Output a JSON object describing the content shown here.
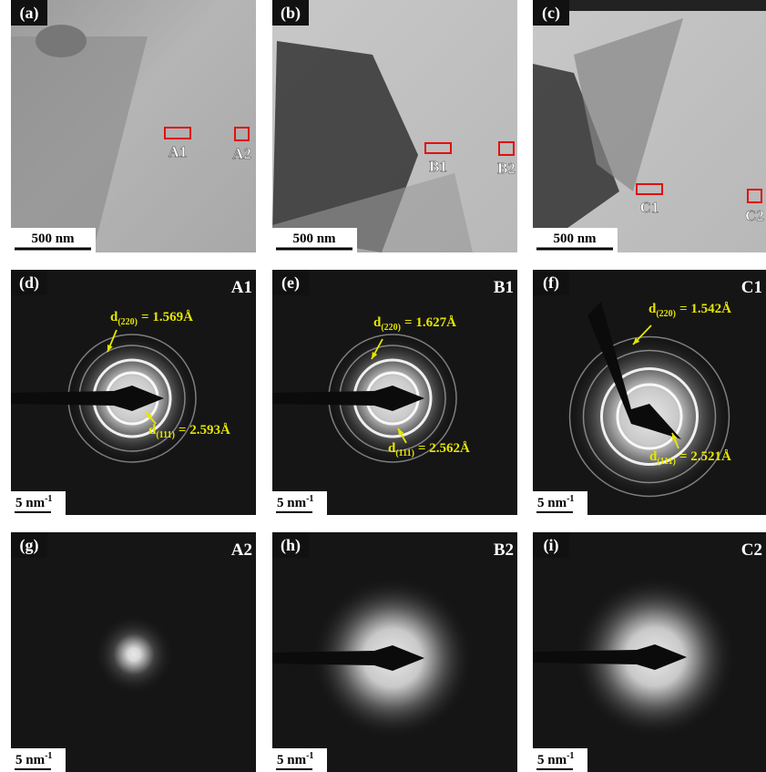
{
  "tem_images": [
    {
      "label": "(a)",
      "markers": [
        "A1",
        "A2"
      ],
      "scale_bar": "500 nm"
    },
    {
      "label": "(b)",
      "markers": [
        "B1",
        "B2"
      ],
      "scale_bar": "500 nm"
    },
    {
      "label": "(c)",
      "markers": [
        "C1",
        "C2"
      ],
      "scale_bar": "500 nm"
    }
  ],
  "diffraction_patterns": [
    {
      "label": "(d)",
      "region": "A1",
      "annotations": [
        {
          "symbol": "d",
          "index": "(220)",
          "value": "= 1.569Å"
        },
        {
          "symbol": "d",
          "index": "(111)",
          "value": "= 2.593Å"
        }
      ],
      "scale_bar": {
        "text": "5 nm",
        "exponent": "-1"
      }
    },
    {
      "label": "(e)",
      "region": "B1",
      "annotations": [
        {
          "symbol": "d",
          "index": "(220)",
          "value": "= 1.627Å"
        },
        {
          "symbol": "d",
          "index": "(111)",
          "value": "= 2.562Å"
        }
      ],
      "scale_bar": {
        "text": "5 nm",
        "exponent": "-1"
      }
    },
    {
      "label": "(f)",
      "region": "C1",
      "annotations": [
        {
          "symbol": "d",
          "index": "(220)",
          "value": "= 1.542Å"
        },
        {
          "symbol": "d",
          "index": "(111)",
          "value": "= 2.521Å"
        }
      ],
      "scale_bar": {
        "text": "5 nm",
        "exponent": "-1"
      }
    },
    {
      "label": "(g)",
      "region": "A2",
      "scale_bar": {
        "text": "5 nm",
        "exponent": "-1"
      }
    },
    {
      "label": "(h)",
      "region": "B2",
      "scale_bar": {
        "text": "5 nm",
        "exponent": "-1"
      }
    },
    {
      "label": "(i)",
      "region": "C2",
      "scale_bar": {
        "text": "5 nm",
        "exponent": "-1"
      }
    }
  ]
}
